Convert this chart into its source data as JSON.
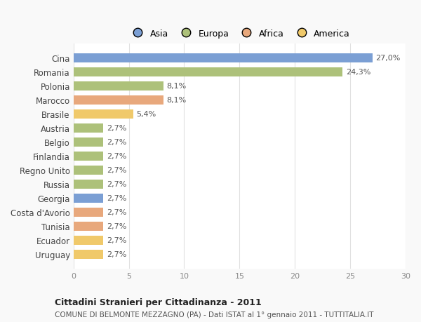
{
  "categories": [
    "Cina",
    "Romania",
    "Polonia",
    "Marocco",
    "Brasile",
    "Austria",
    "Belgio",
    "Finlandia",
    "Regno Unito",
    "Russia",
    "Georgia",
    "Costa d'Avorio",
    "Tunisia",
    "Ecuador",
    "Uruguay"
  ],
  "values": [
    27.0,
    24.3,
    8.1,
    8.1,
    5.4,
    2.7,
    2.7,
    2.7,
    2.7,
    2.7,
    2.7,
    2.7,
    2.7,
    2.7,
    2.7
  ],
  "labels": [
    "27,0%",
    "24,3%",
    "8,1%",
    "8,1%",
    "5,4%",
    "2,7%",
    "2,7%",
    "2,7%",
    "2,7%",
    "2,7%",
    "2,7%",
    "2,7%",
    "2,7%",
    "2,7%",
    "2,7%"
  ],
  "colors": [
    "#7b9fd4",
    "#adc17a",
    "#adc17a",
    "#e8a87c",
    "#f0c96a",
    "#adc17a",
    "#adc17a",
    "#adc17a",
    "#adc17a",
    "#adc17a",
    "#7b9fd4",
    "#e8a87c",
    "#e8a87c",
    "#f0c96a",
    "#f0c96a"
  ],
  "legend_labels": [
    "Asia",
    "Europa",
    "Africa",
    "America"
  ],
  "legend_colors": [
    "#7b9fd4",
    "#adc17a",
    "#e8a87c",
    "#f0c96a"
  ],
  "title1": "Cittadini Stranieri per Cittadinanza - 2011",
  "title2": "COMUNE DI BELMONTE MEZZAGNO (PA) - Dati ISTAT al 1° gennaio 2011 - TUTTITALIA.IT",
  "xlim": [
    0,
    30
  ],
  "xticks": [
    0,
    5,
    10,
    15,
    20,
    25,
    30
  ],
  "background_color": "#f9f9f9",
  "bar_background_color": "#ffffff",
  "grid_color": "#e0e0e0"
}
